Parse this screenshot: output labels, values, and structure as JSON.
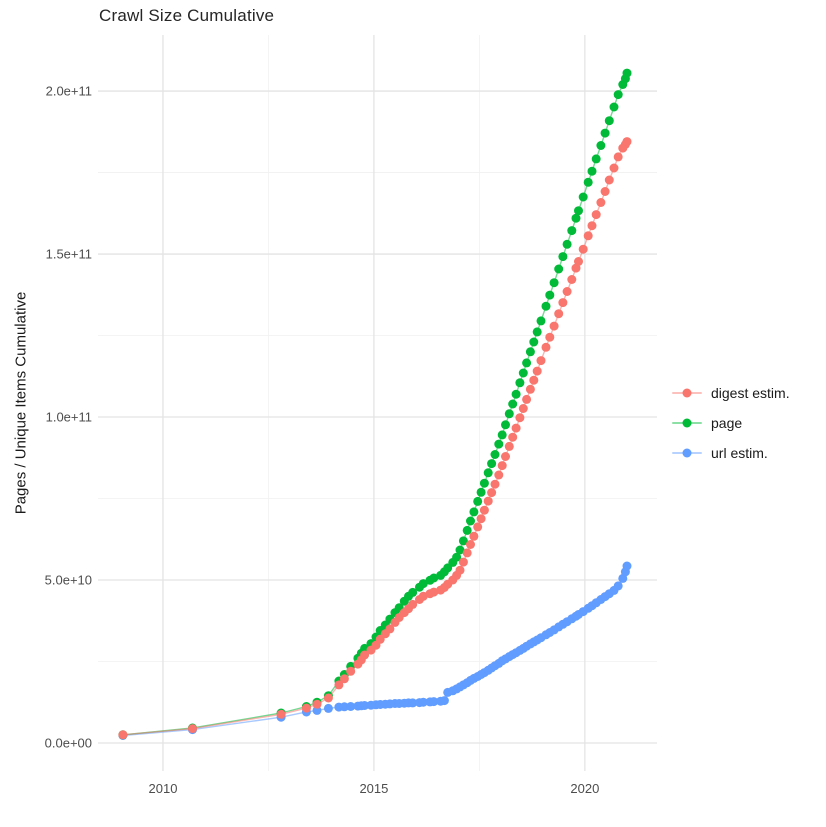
{
  "chart_data": {
    "type": "scatter",
    "title": "Crawl Size Cumulative",
    "xlabel": "",
    "ylabel": "Pages / Unique Items Cumulative",
    "grid": true,
    "legend_position": "right",
    "background": "#ffffff",
    "grid_major_color": "#e4e4e4",
    "grid_minor_color": "#f1f1f1",
    "x_axis": {
      "tick_values": [
        2010,
        2015,
        2020
      ],
      "tick_labels": [
        "2010",
        "2015",
        "2020"
      ],
      "minor_ticks": [
        2012.5,
        2017.5
      ],
      "range": [
        2008.46,
        2021.71
      ]
    },
    "y_axis": {
      "tick_values": [
        0,
        50000000000.0,
        100000000000.0,
        150000000000.0,
        200000000000.0
      ],
      "tick_labels": [
        "0.0e+00",
        "5.0e+10",
        "1.0e+11",
        "1.5e+11",
        "2.0e+11"
      ],
      "minor_ticks": [
        25000000000.0,
        75000000000.0,
        125000000000.0,
        175000000000.0
      ],
      "range": [
        -8600000000.0,
        217200000000.0
      ]
    },
    "values_scale": 10000000000.0,
    "x": [
      2009.05,
      2010.7,
      2012.8,
      2013.4,
      2013.65,
      2013.92,
      2014.17,
      2014.3,
      2014.45,
      2014.62,
      2014.7,
      2014.78,
      2014.93,
      2015.05,
      2015.15,
      2015.27,
      2015.38,
      2015.5,
      2015.6,
      2015.72,
      2015.82,
      2015.92,
      2016.08,
      2016.17,
      2016.33,
      2016.42,
      2016.58,
      2016.67,
      2016.75,
      2016.87,
      2016.96,
      2017.04,
      2017.12,
      2017.21,
      2017.29,
      2017.37,
      2017.46,
      2017.54,
      2017.62,
      2017.71,
      2017.79,
      2017.87,
      2017.96,
      2018.04,
      2018.12,
      2018.21,
      2018.29,
      2018.37,
      2018.46,
      2018.54,
      2018.62,
      2018.71,
      2018.79,
      2018.87,
      2018.96,
      2019.08,
      2019.17,
      2019.27,
      2019.38,
      2019.48,
      2019.58,
      2019.69,
      2019.79,
      2019.85,
      2019.96,
      2020.08,
      2020.17,
      2020.27,
      2020.38,
      2020.48,
      2020.58,
      2020.69,
      2020.79,
      2020.9,
      2020.96,
      2021.0
    ],
    "series": [
      {
        "name": "digest estim.",
        "color": "#f8766d",
        "values": [
          0.25,
          0.44,
          0.88,
          1.07,
          1.19,
          1.38,
          1.78,
          1.97,
          2.2,
          2.42,
          2.55,
          2.7,
          2.85,
          3.0,
          3.18,
          3.35,
          3.5,
          3.7,
          3.85,
          4.0,
          4.12,
          4.25,
          4.4,
          4.5,
          4.58,
          4.63,
          4.69,
          4.77,
          4.87,
          5.0,
          5.14,
          5.3,
          5.55,
          5.83,
          6.09,
          6.34,
          6.63,
          6.88,
          7.14,
          7.42,
          7.68,
          7.94,
          8.22,
          8.51,
          8.79,
          9.1,
          9.38,
          9.66,
          9.98,
          10.26,
          10.54,
          10.85,
          11.13,
          11.41,
          11.73,
          12.14,
          12.45,
          12.79,
          13.17,
          13.51,
          13.85,
          14.22,
          14.57,
          14.77,
          15.15,
          15.56,
          15.87,
          16.21,
          16.58,
          16.92,
          17.27,
          17.64,
          17.98,
          18.25,
          18.36,
          18.45
        ]
      },
      {
        "name": "page",
        "color": "#00ba38",
        "values": [
          0.25,
          0.46,
          0.92,
          1.12,
          1.25,
          1.45,
          1.9,
          2.1,
          2.35,
          2.6,
          2.75,
          2.9,
          3.05,
          3.25,
          3.45,
          3.62,
          3.8,
          4.0,
          4.15,
          4.35,
          4.5,
          4.62,
          4.78,
          4.89,
          4.99,
          5.06,
          5.14,
          5.25,
          5.37,
          5.54,
          5.7,
          5.92,
          6.2,
          6.52,
          6.81,
          7.09,
          7.41,
          7.69,
          7.97,
          8.29,
          8.57,
          8.85,
          9.17,
          9.45,
          9.76,
          10.1,
          10.4,
          10.7,
          11.05,
          11.35,
          11.66,
          12.0,
          12.3,
          12.61,
          12.95,
          13.4,
          13.74,
          14.12,
          14.54,
          14.92,
          15.3,
          15.72,
          16.1,
          16.33,
          16.75,
          17.2,
          17.54,
          17.92,
          18.33,
          18.71,
          19.09,
          19.51,
          19.89,
          20.2,
          20.38,
          20.55
        ]
      },
      {
        "name": "url estim.",
        "color": "#619cff",
        "values": [
          0.23,
          0.41,
          0.79,
          0.95,
          1.0,
          1.06,
          1.1,
          1.11,
          1.12,
          1.13,
          1.14,
          1.15,
          1.16,
          1.17,
          1.18,
          1.19,
          1.2,
          1.21,
          1.21,
          1.22,
          1.23,
          1.23,
          1.24,
          1.25,
          1.26,
          1.27,
          1.28,
          1.3,
          1.55,
          1.6,
          1.66,
          1.72,
          1.78,
          1.85,
          1.92,
          1.98,
          2.04,
          2.1,
          2.16,
          2.23,
          2.3,
          2.37,
          2.44,
          2.52,
          2.58,
          2.65,
          2.71,
          2.77,
          2.84,
          2.9,
          2.97,
          3.04,
          3.1,
          3.16,
          3.23,
          3.32,
          3.39,
          3.47,
          3.56,
          3.64,
          3.72,
          3.81,
          3.89,
          3.94,
          4.03,
          4.13,
          4.21,
          4.3,
          4.4,
          4.49,
          4.58,
          4.68,
          4.82,
          5.05,
          5.25,
          5.43
        ]
      }
    ]
  }
}
